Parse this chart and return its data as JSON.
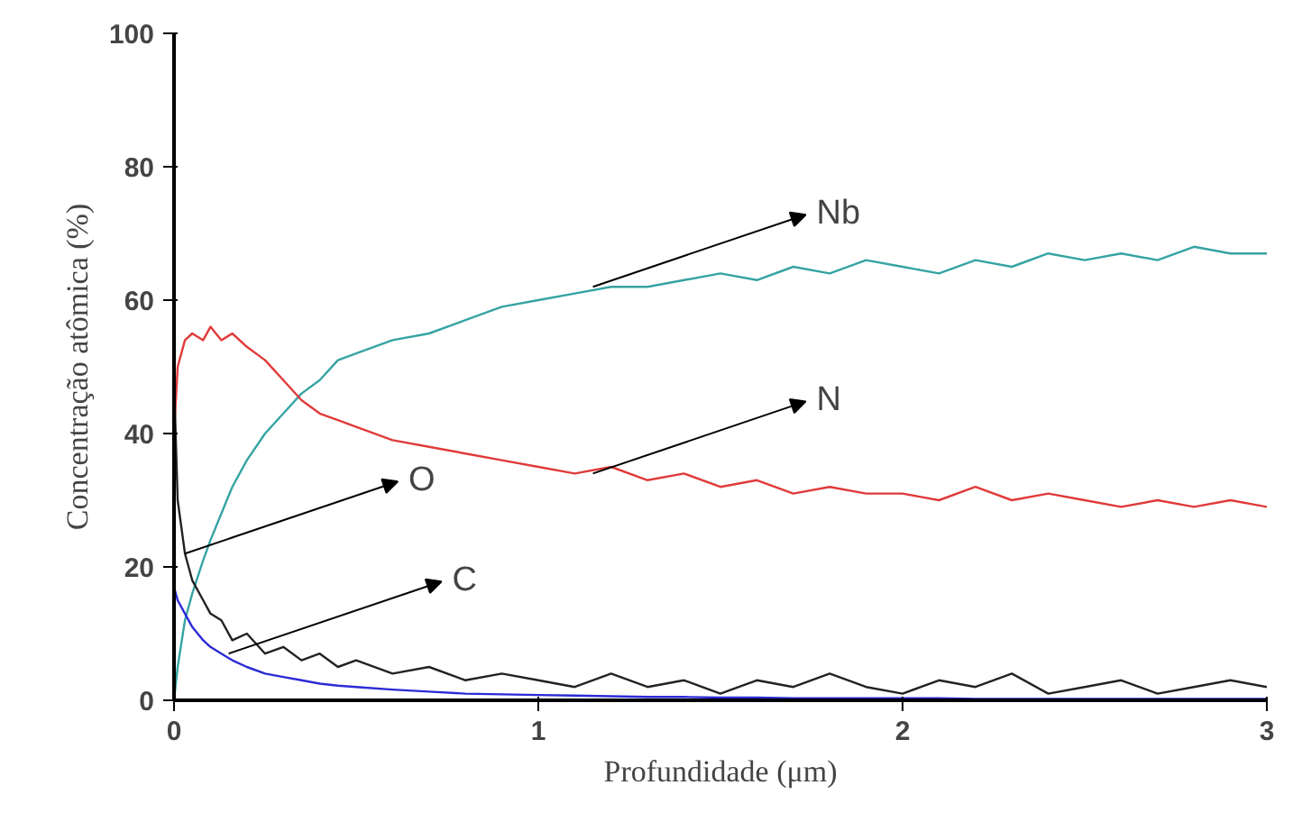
{
  "chart_data": {
    "type": "line",
    "xlabel": "Profundidade (μm)",
    "ylabel": "Concentração atômica (%)",
    "x": [
      0,
      0.01,
      0.03,
      0.05,
      0.08,
      0.1,
      0.13,
      0.16,
      0.2,
      0.25,
      0.3,
      0.35,
      0.4,
      0.45,
      0.5,
      0.6,
      0.7,
      0.8,
      0.9,
      1.0,
      1.1,
      1.2,
      1.3,
      1.4,
      1.5,
      1.6,
      1.7,
      1.8,
      1.9,
      2.0,
      2.1,
      2.2,
      2.3,
      2.4,
      2.5,
      2.6,
      2.7,
      2.8,
      2.9,
      3.0
    ],
    "series": [
      {
        "color": "#36a3a3",
        "values": [
          0,
          5,
          12,
          16,
          21,
          24,
          28,
          32,
          36,
          40,
          43,
          46,
          48,
          51,
          52,
          54,
          55,
          57,
          59,
          60,
          61,
          62,
          62,
          63,
          64,
          63,
          65,
          64,
          66,
          65,
          64,
          66,
          65,
          67,
          66,
          67,
          66,
          68,
          67,
          67
        ]
      },
      {
        "color": "#e03a3a",
        "values": [
          40,
          50,
          54,
          55,
          54,
          56,
          54,
          55,
          53,
          51,
          48,
          45,
          43,
          42,
          41,
          39,
          38,
          37,
          36,
          35,
          34,
          35,
          33,
          34,
          32,
          33,
          31,
          32,
          31,
          31,
          30,
          32,
          30,
          31,
          30,
          29,
          30,
          29,
          30,
          29
        ]
      },
      {
        "color": "#222222",
        "values": [
          48,
          30,
          22,
          18,
          15,
          13,
          12,
          9,
          10,
          7,
          8,
          6,
          7,
          5,
          6,
          4,
          5,
          3,
          4,
          3,
          2,
          4,
          2,
          3,
          1,
          3,
          2,
          4,
          2,
          1,
          3,
          2,
          4,
          1,
          2,
          3,
          1,
          2,
          3,
          2
        ]
      },
      {
        "color": "#2b2bd6",
        "values": [
          17,
          15,
          13,
          11,
          9,
          8,
          7,
          6,
          5,
          4,
          3.5,
          3,
          2.5,
          2.2,
          2,
          1.6,
          1.3,
          1,
          0.9,
          0.8,
          0.7,
          0.6,
          0.5,
          0.5,
          0.4,
          0.4,
          0.3,
          0.3,
          0.3,
          0.3,
          0.3,
          0.2,
          0.2,
          0.2,
          0.2,
          0.2,
          0.2,
          0.2,
          0.2,
          0.2
        ]
      }
    ],
    "annotations": [
      {
        "text": "Nb",
        "x": 1.15,
        "y": 62
      },
      {
        "text": "N",
        "x": 1.15,
        "y": 34
      },
      {
        "text": "O",
        "x": 0.03,
        "y": 22
      },
      {
        "text": "C",
        "x": 0.15,
        "y": 7
      }
    ],
    "xlim": [
      0,
      3
    ],
    "ylim": [
      0,
      100
    ],
    "xticks": [
      0,
      1,
      2,
      3
    ],
    "yticks": [
      0,
      20,
      40,
      60,
      80,
      100
    ],
    "grid": false
  }
}
